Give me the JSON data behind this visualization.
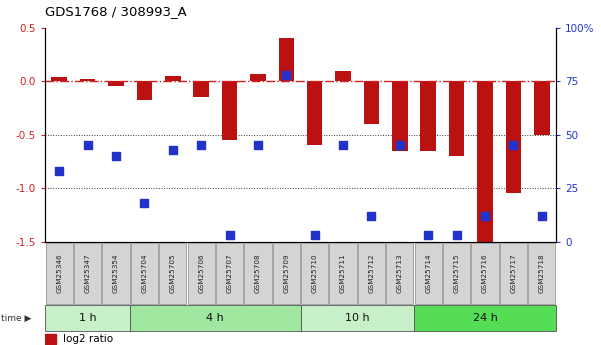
{
  "title": "GDS1768 / 308993_A",
  "samples": [
    "GSM25346",
    "GSM25347",
    "GSM25354",
    "GSM25704",
    "GSM25705",
    "GSM25706",
    "GSM25707",
    "GSM25708",
    "GSM25709",
    "GSM25710",
    "GSM25711",
    "GSM25712",
    "GSM25713",
    "GSM25714",
    "GSM25715",
    "GSM25716",
    "GSM25717",
    "GSM25718"
  ],
  "log2_ratio": [
    0.04,
    0.02,
    -0.05,
    -0.18,
    0.05,
    -0.15,
    -0.55,
    0.07,
    0.4,
    -0.6,
    0.09,
    -0.4,
    -0.65,
    -0.65,
    -0.7,
    -1.55,
    -1.05,
    -0.5
  ],
  "percentile_rank": [
    33,
    45,
    40,
    18,
    43,
    45,
    3,
    45,
    78,
    3,
    45,
    12,
    45,
    3,
    3,
    12,
    45,
    12
  ],
  "time_groups": [
    {
      "label": "1 h",
      "start": 0,
      "end": 3,
      "color": "#c8f0c8"
    },
    {
      "label": "4 h",
      "start": 3,
      "end": 9,
      "color": "#a0e8a0"
    },
    {
      "label": "10 h",
      "start": 9,
      "end": 13,
      "color": "#c8f0c8"
    },
    {
      "label": "24 h",
      "start": 13,
      "end": 18,
      "color": "#55dd55"
    }
  ],
  "ylim_left": [
    -1.5,
    0.5
  ],
  "ylim_right": [
    0,
    100
  ],
  "bar_color": "#bb1111",
  "dot_color": "#2233cc",
  "hline_color": "#cc2222",
  "dotline_color": "#333333",
  "bar_width": 0.55,
  "dot_size": 28,
  "left_yticks": [
    0.5,
    0.0,
    -0.5,
    -1.0,
    -1.5
  ],
  "right_yticks": [
    100,
    75,
    50,
    25,
    0
  ],
  "left_tick_color": "#cc2222",
  "right_tick_color": "#2233cc",
  "legend_bar_color": "#bb1111",
  "legend_dot_color": "#2233cc"
}
